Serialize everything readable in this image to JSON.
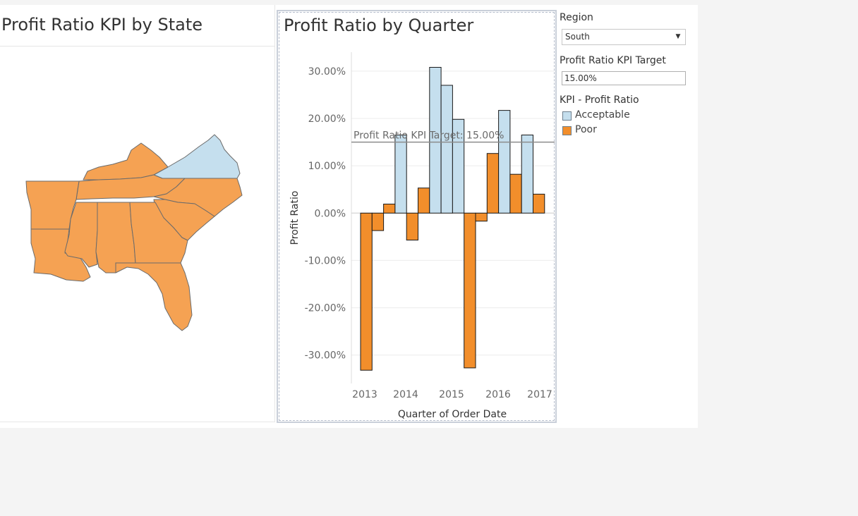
{
  "map": {
    "title": "Profit Ratio KPI by State",
    "states": [
      {
        "name": "Virginia",
        "kpi": "Acceptable"
      },
      {
        "name": "Kentucky",
        "kpi": "Poor"
      },
      {
        "name": "Tennessee",
        "kpi": "Poor"
      },
      {
        "name": "North Carolina",
        "kpi": "Poor"
      },
      {
        "name": "South Carolina",
        "kpi": "Poor"
      },
      {
        "name": "Arkansas",
        "kpi": "Poor"
      },
      {
        "name": "Louisiana",
        "kpi": "Poor"
      },
      {
        "name": "Mississippi",
        "kpi": "Poor"
      },
      {
        "name": "Alabama",
        "kpi": "Poor"
      },
      {
        "name": "Georgia",
        "kpi": "Poor"
      },
      {
        "name": "Florida",
        "kpi": "Poor"
      }
    ]
  },
  "filters": {
    "region_label": "Region",
    "region_value": "South",
    "target_label": "Profit Ratio KPI Target",
    "target_value": "15.00%"
  },
  "legend": {
    "title": "KPI - Profit Ratio",
    "items": [
      {
        "label": "Acceptable",
        "color": "#c5dfee"
      },
      {
        "label": "Poor",
        "color": "#f28e2b"
      }
    ]
  },
  "colors": {
    "acceptable": "#c5dfee",
    "poor": "#f28e2b",
    "map_poor": "#f5a253",
    "state_border": "#6b6b6b",
    "reference_line": "#8c8c8c"
  },
  "chart_data": {
    "type": "bar",
    "title": "Profit Ratio by Quarter",
    "xlabel": "Quarter of Order Date",
    "ylabel": "Profit Ratio",
    "ylim": [
      -36,
      34
    ],
    "yticks": [
      30,
      20,
      10,
      0,
      -10,
      -20,
      -30
    ],
    "ytick_labels": [
      "30.00%",
      "20.00%",
      "10.00%",
      "0.00%",
      "-10.00%",
      "-20.00%",
      "-30.00%"
    ],
    "x_years": [
      "2013",
      "2014",
      "2015",
      "2016",
      "2017"
    ],
    "grid": true,
    "reference_line": {
      "value": 15.0,
      "label": "Profit Ratio KPI Target: 15.00%"
    },
    "quarters": [
      {
        "year": "2013",
        "q": "Q1",
        "value": -33.2,
        "kpi": "Poor"
      },
      {
        "year": "2013",
        "q": "Q2",
        "value": -3.7,
        "kpi": "Poor"
      },
      {
        "year": "2013",
        "q": "Q3",
        "value": 1.9,
        "kpi": "Poor"
      },
      {
        "year": "2013",
        "q": "Q4",
        "value": 16.5,
        "kpi": "Acceptable"
      },
      {
        "year": "2014",
        "q": "Q1",
        "value": -5.7,
        "kpi": "Poor"
      },
      {
        "year": "2014",
        "q": "Q2",
        "value": 5.3,
        "kpi": "Poor"
      },
      {
        "year": "2014",
        "q": "Q3",
        "value": 30.8,
        "kpi": "Acceptable"
      },
      {
        "year": "2014",
        "q": "Q4",
        "value": 27.0,
        "kpi": "Acceptable"
      },
      {
        "year": "2015",
        "q": "Q1",
        "value": 19.8,
        "kpi": "Acceptable"
      },
      {
        "year": "2015",
        "q": "Q2",
        "value": -32.7,
        "kpi": "Poor"
      },
      {
        "year": "2015",
        "q": "Q3",
        "value": -1.7,
        "kpi": "Poor"
      },
      {
        "year": "2015",
        "q": "Q4",
        "value": 12.6,
        "kpi": "Poor"
      },
      {
        "year": "2016",
        "q": "Q1",
        "value": 21.7,
        "kpi": "Acceptable"
      },
      {
        "year": "2016",
        "q": "Q2",
        "value": 8.2,
        "kpi": "Poor"
      },
      {
        "year": "2016",
        "q": "Q3",
        "value": 16.5,
        "kpi": "Acceptable"
      },
      {
        "year": "2016",
        "q": "Q4",
        "value": 4.0,
        "kpi": "Poor"
      }
    ]
  }
}
